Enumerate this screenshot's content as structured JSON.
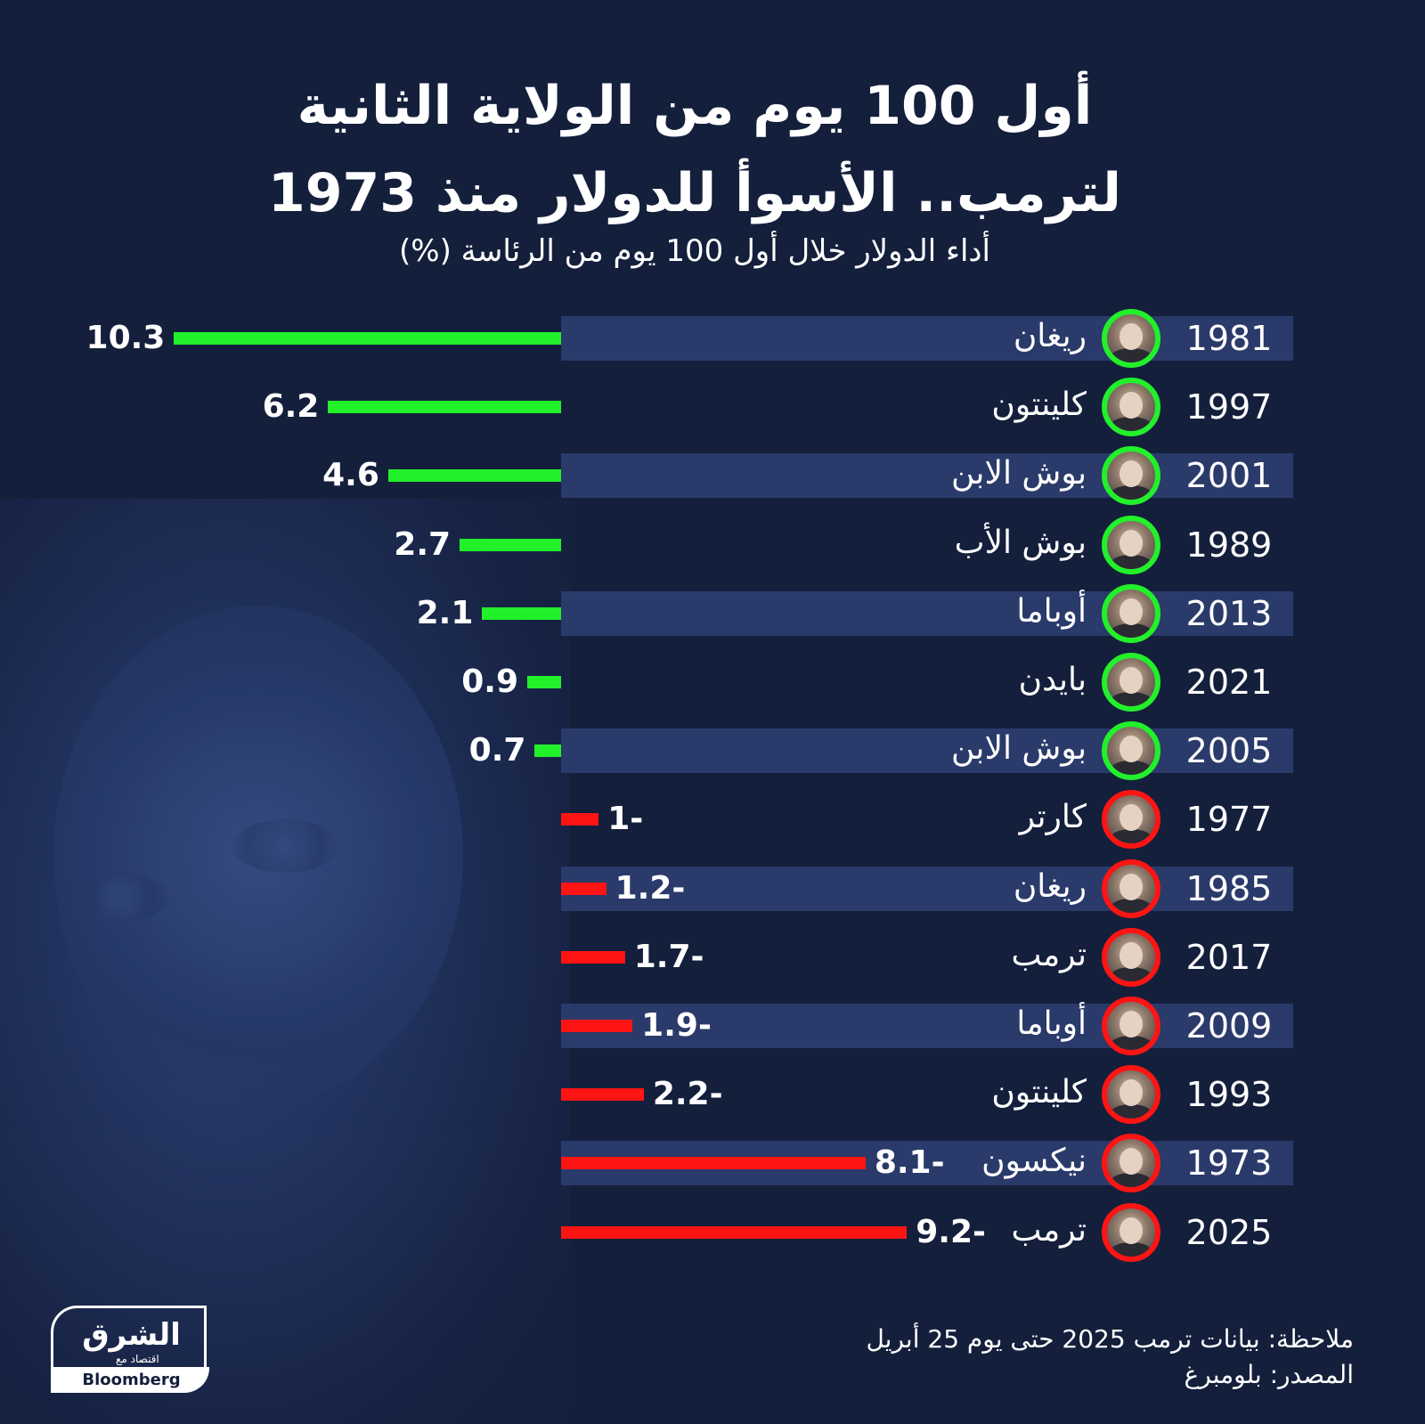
{
  "title": {
    "line1": "أول 100 يوم من الولاية الثانية",
    "line2": "لترمب.. الأسوأ للدولار منذ 1973"
  },
  "subtitle": "أداء الدولار خلال أول 100 يوم من الرئاسة (%)",
  "colors": {
    "positive": "#22f02a",
    "negative": "#ff1414",
    "band": "#2a3a6a",
    "background": "#141f3c"
  },
  "chart_data": {
    "type": "bar",
    "orientation": "horizontal",
    "title": "أداء الدولار خلال أول 100 يوم من الرئاسة (%)",
    "rows": [
      {
        "year": "1981",
        "president": "ريغان",
        "value": 10.3,
        "label": "10.3"
      },
      {
        "year": "1997",
        "president": "كلينتون",
        "value": 6.2,
        "label": "6.2"
      },
      {
        "year": "2001",
        "president": "بوش الابن",
        "value": 4.6,
        "label": "4.6"
      },
      {
        "year": "1989",
        "president": "بوش الأب",
        "value": 2.7,
        "label": "2.7"
      },
      {
        "year": "2013",
        "president": "أوباما",
        "value": 2.1,
        "label": "2.1"
      },
      {
        "year": "2021",
        "president": "بايدن",
        "value": 0.9,
        "label": "0.9"
      },
      {
        "year": "2005",
        "president": "بوش الابن",
        "value": 0.7,
        "label": "0.7"
      },
      {
        "year": "1977",
        "president": "كارتر",
        "value": -1,
        "label": "1-"
      },
      {
        "year": "1985",
        "president": "ريغان",
        "value": -1.2,
        "label": "1.2-"
      },
      {
        "year": "2017",
        "president": "ترمب",
        "value": -1.7,
        "label": "1.7-"
      },
      {
        "year": "2009",
        "president": "أوباما",
        "value": -1.9,
        "label": "1.9-"
      },
      {
        "year": "1993",
        "president": "كلينتون",
        "value": -2.2,
        "label": "2.2-"
      },
      {
        "year": "1973",
        "president": "نيكسون",
        "value": -8.1,
        "label": "8.1-"
      },
      {
        "year": "2025",
        "president": "ترمب",
        "value": -9.2,
        "label": "9.2-"
      }
    ]
  },
  "footer": {
    "note": "ملاحظة: بيانات ترمب 2025 حتى يوم 25 أبريل",
    "source": "المصدر: بلومبرغ"
  },
  "logo": {
    "arabic": "الشرق",
    "sub": "اقتصاد مع",
    "bloomberg": "Bloomberg"
  }
}
